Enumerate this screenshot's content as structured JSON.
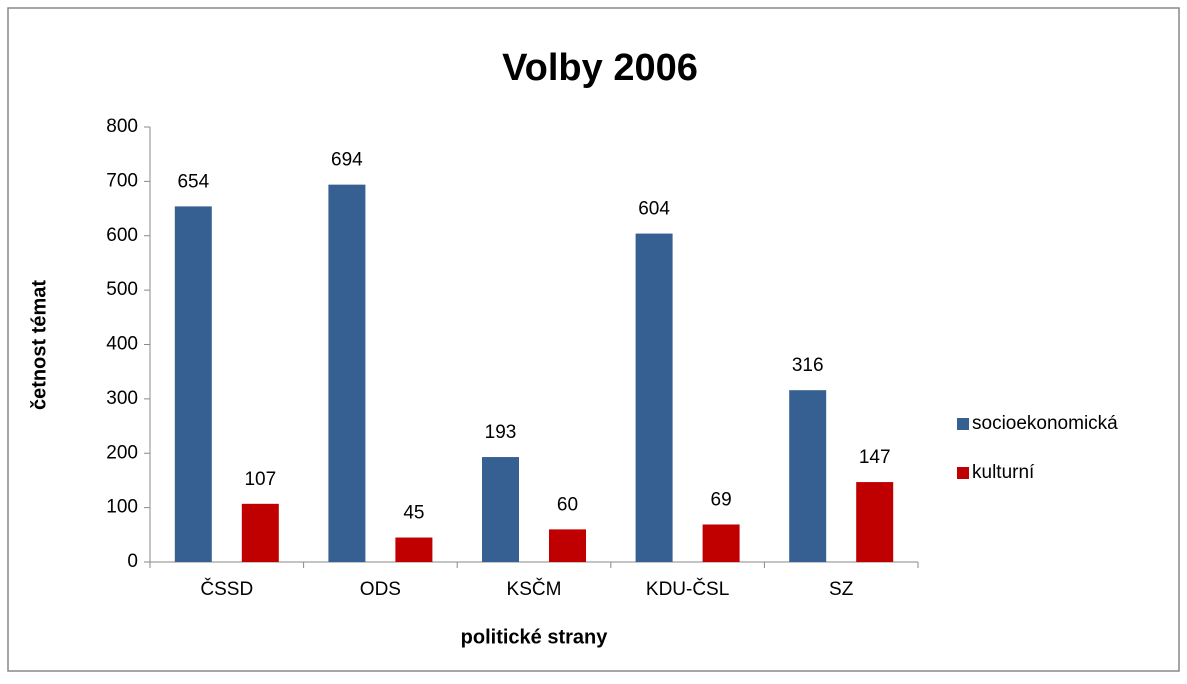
{
  "chart_data": {
    "type": "bar",
    "title": "Volby 2006",
    "x_label": "politické strany",
    "y_label": "četnost témat",
    "categories": [
      "ČSSD",
      "ODS",
      "KSČM",
      "KDU-ČSL",
      "SZ"
    ],
    "series": [
      {
        "name": "socioekonomická",
        "color": "#376092",
        "values": [
          654,
          694,
          193,
          604,
          316
        ]
      },
      {
        "name": "kulturní",
        "color": "#c00000",
        "values": [
          107,
          45,
          60,
          69,
          147
        ]
      }
    ],
    "ylim": [
      0,
      800
    ],
    "yticks": [
      0,
      100,
      200,
      300,
      400,
      500,
      600,
      700,
      800
    ],
    "legend": "right"
  }
}
